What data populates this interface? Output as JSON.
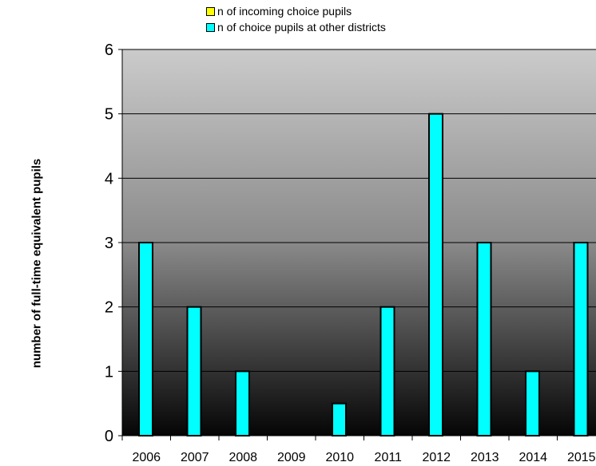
{
  "chart_data": {
    "type": "bar",
    "title": "",
    "xlabel": "",
    "ylabel": "number of full-time equivalent pupils",
    "categories": [
      "2006",
      "2007",
      "2008",
      "2009",
      "2010",
      "2011",
      "2012",
      "2013",
      "2014",
      "2015"
    ],
    "series": [
      {
        "name": "n of incoming choice pupils",
        "color": "#ffff00",
        "values": [
          0,
          0,
          0,
          0,
          0,
          0,
          0,
          0,
          0,
          0
        ]
      },
      {
        "name": "n of choice pupils at other districts",
        "color": "#00ffff",
        "values": [
          3,
          2,
          1,
          0,
          0.5,
          2,
          5,
          3,
          1,
          3
        ]
      }
    ],
    "ylim": [
      0,
      6
    ],
    "yticks": [
      0,
      1,
      2,
      3,
      4,
      5,
      6
    ],
    "grid": true,
    "legend_position": "top"
  }
}
